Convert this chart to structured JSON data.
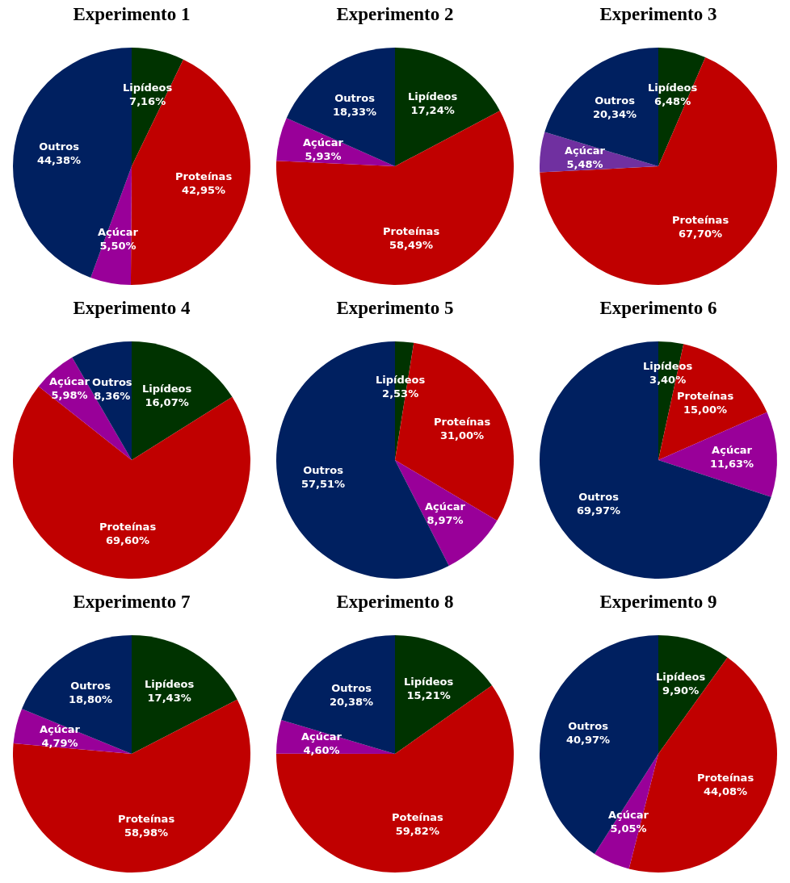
{
  "chart_data": [
    {
      "type": "pie",
      "title": "Experimento 1",
      "categories": [
        "Lipídeos",
        "Proteínas",
        "Açúcar",
        "Outros"
      ],
      "values": [
        7.16,
        42.95,
        5.5,
        44.38
      ],
      "value_labels": [
        "7,16%",
        "42,95%",
        "5,50%",
        "44,38%"
      ],
      "colors": [
        "#003300",
        "#c00000",
        "#990099",
        "#002060"
      ]
    },
    {
      "type": "pie",
      "title": "Experimento 2",
      "categories": [
        "Lipídeos",
        "Proteínas",
        "Açúcar",
        "Outros"
      ],
      "values": [
        17.24,
        58.49,
        5.93,
        18.33
      ],
      "value_labels": [
        "17,24%",
        "58,49%",
        "5,93%",
        "18,33%"
      ],
      "colors": [
        "#003300",
        "#c00000",
        "#990099",
        "#002060"
      ]
    },
    {
      "type": "pie",
      "title": "Experimento 3",
      "categories": [
        "Lipídeos",
        "Proteínas",
        "Açúcar",
        "Outros"
      ],
      "values": [
        6.48,
        67.7,
        5.48,
        20.34
      ],
      "value_labels": [
        "6,48%",
        "67,70%",
        "5,48%",
        "20,34%"
      ],
      "colors": [
        "#003300",
        "#c00000",
        "#7030a0",
        "#002060"
      ]
    },
    {
      "type": "pie",
      "title": "Experimento 4",
      "categories": [
        "Lipídeos",
        "Proteínas",
        "Açúcar",
        "Outros"
      ],
      "values": [
        16.07,
        69.6,
        5.98,
        8.36
      ],
      "value_labels": [
        "16,07%",
        "69,60%",
        "5,98%",
        "8,36%"
      ],
      "colors": [
        "#003300",
        "#c00000",
        "#990099",
        "#002060"
      ]
    },
    {
      "type": "pie",
      "title": "Experimento 5",
      "categories": [
        "Lipídeos",
        "Proteínas",
        "Açúcar",
        "Outros"
      ],
      "values": [
        2.53,
        31.0,
        8.97,
        57.51
      ],
      "value_labels": [
        "2,53%",
        "31,00%",
        "8,97%",
        "57,51%"
      ],
      "colors": [
        "#003300",
        "#c00000",
        "#990099",
        "#002060"
      ]
    },
    {
      "type": "pie",
      "title": "Experimento 6",
      "categories": [
        "Lipídeos",
        "Proteínas",
        "Açúcar",
        "Outros"
      ],
      "values": [
        3.4,
        15.0,
        11.63,
        69.97
      ],
      "value_labels": [
        "3,40%",
        "15,00%",
        "11,63%",
        "69,97%"
      ],
      "colors": [
        "#003300",
        "#c00000",
        "#990099",
        "#002060"
      ]
    },
    {
      "type": "pie",
      "title": "Experimento 7",
      "categories": [
        "Lipídeos",
        "Proteínas",
        "Açúcar",
        "Outros"
      ],
      "values": [
        17.43,
        58.98,
        4.79,
        18.8
      ],
      "value_labels": [
        "17,43%",
        "58,98%",
        "4,79%",
        "18,80%"
      ],
      "colors": [
        "#003300",
        "#c00000",
        "#990099",
        "#002060"
      ]
    },
    {
      "type": "pie",
      "title": "Experimento 8",
      "categories": [
        "Lipídeos",
        "Poteínas",
        "Açúcar",
        "Outros"
      ],
      "values": [
        15.21,
        59.82,
        4.6,
        20.38
      ],
      "value_labels": [
        "15,21%",
        "59,82%",
        "4,60%",
        "20,38%"
      ],
      "colors": [
        "#003300",
        "#c00000",
        "#990099",
        "#002060"
      ]
    },
    {
      "type": "pie",
      "title": "Experimento 9",
      "categories": [
        "Lipídeos",
        "Proteínas",
        "Açúcar",
        "Outros"
      ],
      "values": [
        9.9,
        44.08,
        5.05,
        40.97
      ],
      "value_labels": [
        "9,90%",
        "44,08%",
        "5,05%",
        "40,97%"
      ],
      "colors": [
        "#003300",
        "#c00000",
        "#990099",
        "#002060"
      ]
    }
  ]
}
